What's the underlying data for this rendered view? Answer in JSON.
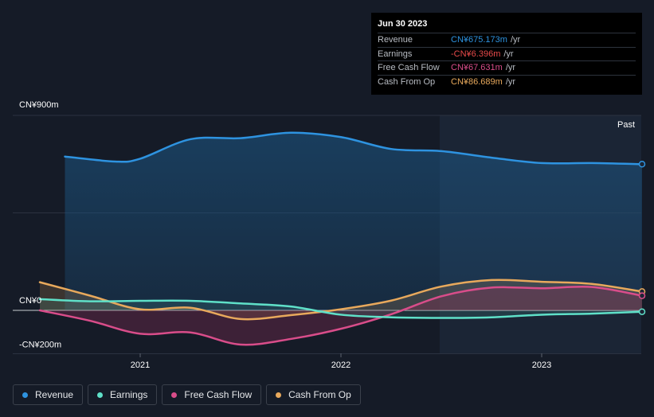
{
  "colors": {
    "revenue": "#2e93e0",
    "earnings": "#5fe0c8",
    "fcf": "#d94d8a",
    "cfo": "#e8a95c"
  },
  "tooltip": {
    "date": "Jun 30 2023",
    "rows": [
      {
        "label": "Revenue",
        "value": "CN¥675.173m",
        "unit": "/yr",
        "color": "#2e93e0"
      },
      {
        "label": "Earnings",
        "value": "-CN¥6.396m",
        "unit": "/yr",
        "color": "#e84a4a"
      },
      {
        "label": "Free Cash Flow",
        "value": "CN¥67.631m",
        "unit": "/yr",
        "color": "#d94d8a"
      },
      {
        "label": "Cash From Op",
        "value": "CN¥86.689m",
        "unit": "/yr",
        "color": "#e8a95c"
      }
    ]
  },
  "legend": [
    {
      "label": "Revenue",
      "color": "#2e93e0"
    },
    {
      "label": "Earnings",
      "color": "#5fe0c8"
    },
    {
      "label": "Free Cash Flow",
      "color": "#d94d8a"
    },
    {
      "label": "Cash From Op",
      "color": "#e8a95c"
    }
  ],
  "chart_data": {
    "type": "area",
    "past_label": "Past",
    "y_tick_labels": [
      {
        "value": 900,
        "label": "CN¥900m"
      },
      {
        "value": 0,
        "label": "CN¥0"
      },
      {
        "value": -200,
        "label": "-CN¥200m"
      }
    ],
    "ylim": [
      -200,
      900
    ],
    "x_tick_labels": [
      {
        "value": 2021.0,
        "label": "2021"
      },
      {
        "value": 2022.0,
        "label": "2022"
      },
      {
        "value": 2023.0,
        "label": "2023"
      }
    ],
    "xlim": [
      2020.5,
      2023.5
    ],
    "series": [
      {
        "name": "Revenue",
        "key": "revenue",
        "x": [
          2020.625,
          2020.875,
          2021.0,
          2021.25,
          2021.5,
          2021.75,
          2022.0,
          2022.25,
          2022.5,
          2022.75,
          2023.0,
          2023.25,
          2023.5
        ],
        "y": [
          710,
          687,
          700,
          790,
          795,
          820,
          800,
          745,
          735,
          705,
          680,
          680,
          675
        ]
      },
      {
        "name": "Earnings",
        "key": "earnings",
        "x": [
          2020.5,
          2020.75,
          2021.0,
          2021.25,
          2021.5,
          2021.75,
          2022.0,
          2022.25,
          2022.5,
          2022.75,
          2023.0,
          2023.25,
          2023.5
        ],
        "y": [
          52,
          42,
          44,
          44,
          32,
          18,
          -20,
          -32,
          -35,
          -32,
          -20,
          -15,
          -6.4
        ]
      },
      {
        "name": "Free Cash Flow",
        "key": "fcf",
        "x": [
          2020.5,
          2020.75,
          2021.0,
          2021.25,
          2021.5,
          2021.75,
          2022.0,
          2022.25,
          2022.5,
          2022.75,
          2023.0,
          2023.25,
          2023.5
        ],
        "y": [
          0,
          -48,
          -108,
          -102,
          -158,
          -132,
          -85,
          -18,
          65,
          105,
          102,
          108,
          67.6
        ]
      },
      {
        "name": "Cash From Op",
        "key": "cfo",
        "x": [
          2020.5,
          2020.75,
          2021.0,
          2021.25,
          2021.5,
          2021.75,
          2022.0,
          2022.25,
          2022.5,
          2022.75,
          2023.0,
          2023.25,
          2023.5
        ],
        "y": [
          130,
          68,
          5,
          12,
          -40,
          -22,
          5,
          45,
          110,
          140,
          132,
          122,
          86.7
        ]
      }
    ]
  }
}
